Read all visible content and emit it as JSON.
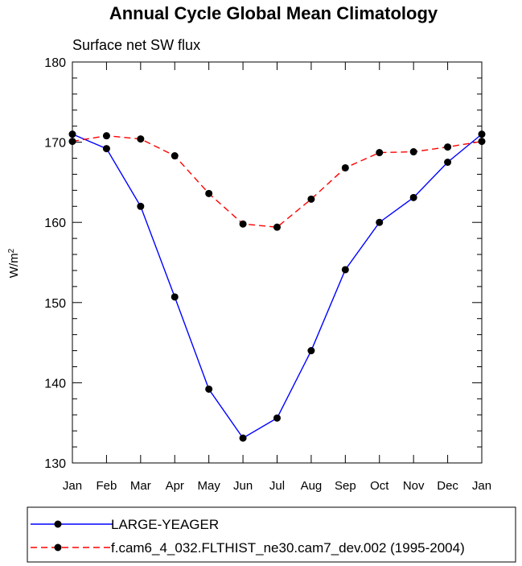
{
  "chart_data": {
    "type": "line",
    "title": "Annual Cycle Global Mean Climatology",
    "subtitle": "Surface net SW flux",
    "ylabel_base": "W/m",
    "ylabel_sup": "2",
    "xlabel": "",
    "categories": [
      "Jan",
      "Feb",
      "Mar",
      "Apr",
      "May",
      "Jun",
      "Jul",
      "Aug",
      "Sep",
      "Oct",
      "Nov",
      "Dec",
      "Jan"
    ],
    "ylim": [
      130,
      180
    ],
    "yticks": [
      130,
      140,
      150,
      160,
      170,
      180
    ],
    "grid": false,
    "legend_position": "bottom",
    "series": [
      {
        "name": "LARGE-YEAGER",
        "color": "#0000ff",
        "dash": "solid",
        "values": [
          171.0,
          169.2,
          162.0,
          150.7,
          139.2,
          133.1,
          135.6,
          144.0,
          154.1,
          160.0,
          163.1,
          167.5,
          171.0
        ]
      },
      {
        "name": "f.cam6_4_032.FLTHIST_ne30.cam7_dev.002 (1995-2004)",
        "color": "#ff0000",
        "dash": "dashed",
        "values": [
          170.1,
          170.8,
          170.4,
          168.3,
          163.6,
          159.8,
          159.4,
          162.9,
          166.8,
          168.7,
          168.8,
          169.4,
          170.1
        ]
      }
    ]
  }
}
